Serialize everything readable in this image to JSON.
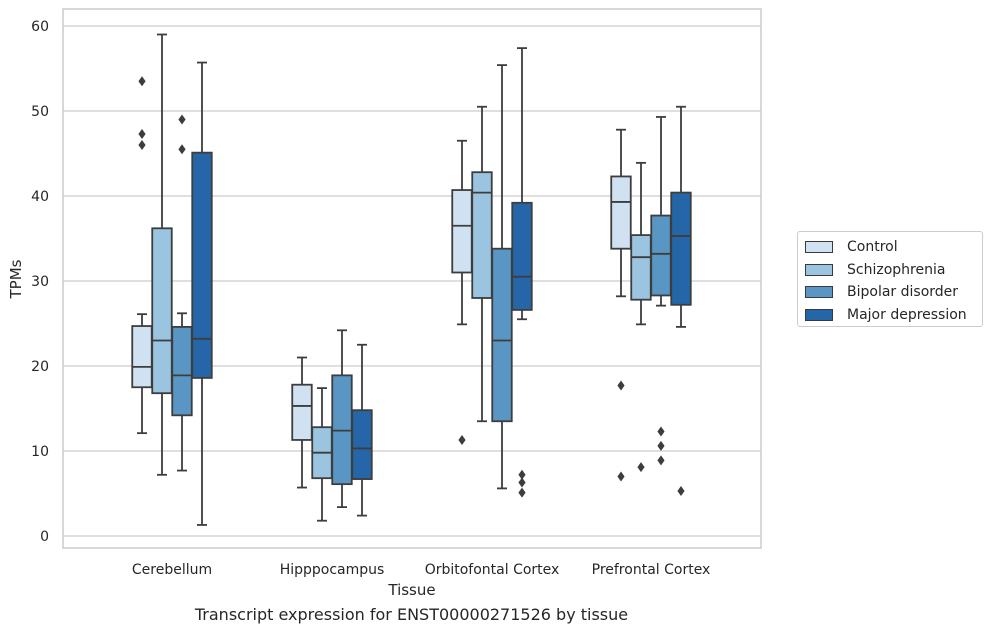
{
  "chart_data": {
    "type": "box",
    "title": "",
    "caption": "Transcript expression for ENST00000271526 by tissue",
    "xlabel": "Tissue",
    "ylabel": "TPMs",
    "ylim": [
      -1.2,
      62
    ],
    "yticks": [
      0,
      10,
      20,
      30,
      40,
      50,
      60
    ],
    "grid": true,
    "legend_position": "right",
    "categories": [
      "Cerebellum",
      "Hipppocampus",
      "Orbitofontal Cortex",
      "Prefrontal Cortex"
    ],
    "series": [
      {
        "name": "Control",
        "color": "#d0e1f2",
        "boxes": [
          {
            "whislo": 12.1,
            "q1": 17.5,
            "med": 19.9,
            "q3": 24.7,
            "whishi": 26.1,
            "fliers": [
              53.5,
              47.3,
              46.0
            ]
          },
          {
            "whislo": 5.7,
            "q1": 11.3,
            "med": 15.3,
            "q3": 17.8,
            "whishi": 21.0,
            "fliers": []
          },
          {
            "whislo": 24.9,
            "q1": 31.0,
            "med": 36.5,
            "q3": 40.7,
            "whishi": 46.5,
            "fliers": [
              11.3
            ]
          },
          {
            "whislo": 28.2,
            "q1": 33.8,
            "med": 39.3,
            "q3": 42.3,
            "whishi": 47.8,
            "fliers": [
              17.7,
              7.0
            ]
          }
        ]
      },
      {
        "name": "Schizophrenia",
        "color": "#9ac4df",
        "boxes": [
          {
            "whislo": 7.2,
            "q1": 16.8,
            "med": 23.0,
            "q3": 36.2,
            "whishi": 59.0,
            "fliers": []
          },
          {
            "whislo": 1.8,
            "q1": 6.8,
            "med": 9.8,
            "q3": 12.8,
            "whishi": 17.4,
            "fliers": []
          },
          {
            "whislo": 13.5,
            "q1": 28.0,
            "med": 40.4,
            "q3": 42.8,
            "whishi": 50.5,
            "fliers": []
          },
          {
            "whislo": 24.9,
            "q1": 27.8,
            "med": 32.8,
            "q3": 35.4,
            "whishi": 43.9,
            "fliers": [
              8.1
            ]
          }
        ]
      },
      {
        "name": "Bipolar disorder",
        "color": "#5996c4",
        "boxes": [
          {
            "whislo": 7.7,
            "q1": 14.2,
            "med": 18.9,
            "q3": 24.6,
            "whishi": 26.2,
            "fliers": [
              49.0,
              45.5
            ]
          },
          {
            "whislo": 3.4,
            "q1": 6.1,
            "med": 12.4,
            "q3": 18.9,
            "whishi": 24.2,
            "fliers": []
          },
          {
            "whislo": 5.6,
            "q1": 13.5,
            "med": 23.0,
            "q3": 33.8,
            "whishi": 55.4,
            "fliers": []
          },
          {
            "whislo": 27.1,
            "q1": 28.3,
            "med": 33.2,
            "q3": 37.7,
            "whishi": 49.3,
            "fliers": [
              12.3,
              10.6,
              8.9
            ]
          }
        ]
      },
      {
        "name": "Major depression",
        "color": "#2566a8",
        "boxes": [
          {
            "whislo": 1.3,
            "q1": 18.6,
            "med": 23.2,
            "q3": 45.1,
            "whishi": 55.7,
            "fliers": []
          },
          {
            "whislo": 2.4,
            "q1": 6.7,
            "med": 10.3,
            "q3": 14.8,
            "whishi": 22.5,
            "fliers": []
          },
          {
            "whislo": 25.5,
            "q1": 26.6,
            "med": 30.5,
            "q3": 39.2,
            "whishi": 57.4,
            "fliers": [
              7.2,
              6.3,
              5.1
            ]
          },
          {
            "whislo": 24.6,
            "q1": 27.2,
            "med": 35.3,
            "q3": 40.4,
            "whishi": 50.5,
            "fliers": [
              5.3
            ]
          }
        ]
      }
    ]
  }
}
